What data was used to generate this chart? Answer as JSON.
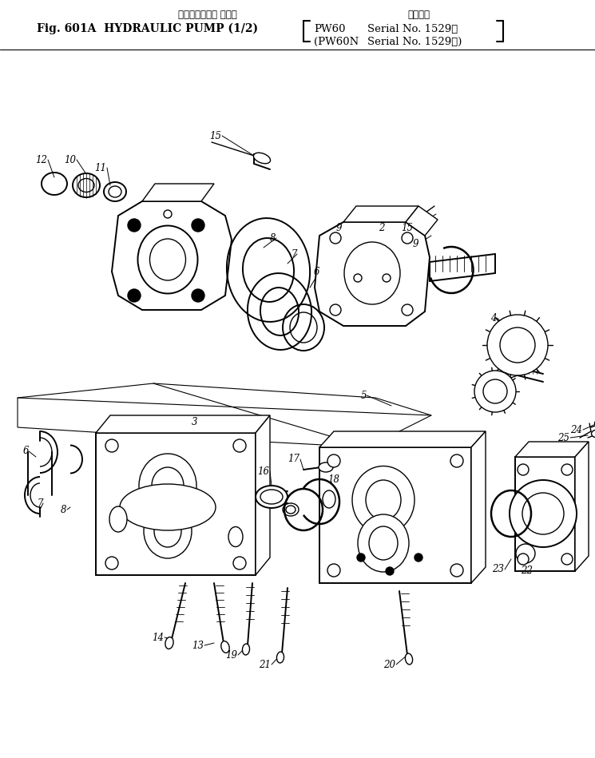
{
  "title_jp": "ハイドロリック ポンプ",
  "title_main": "Fig. 601A  HYDRAULIC PUMP (1/2)",
  "title_pw60": "PW60",
  "title_sn1": "Serial No. 1529～",
  "title_pw60n": "(PW60N",
  "title_sn2": "Serial No. 1529～)",
  "title_tekiyo": "適用号機",
  "bg_color": "#ffffff",
  "fig_width": 7.45,
  "fig_height": 9.49,
  "dpi": 100
}
